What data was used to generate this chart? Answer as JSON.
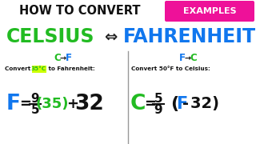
{
  "bg_color": "#ffffff",
  "title_text": "HOW TO CONVERT",
  "title_color": "#111111",
  "celsius_text": "CELSIUS",
  "celsius_color": "#22bb22",
  "fahrenheit_text": "FAHRENHEIT",
  "fahrenheit_color": "#1177ee",
  "examples_text": "EXAMPLES",
  "examples_bg": "#ee1199",
  "examples_color": "#ffffff",
  "arrow_symbol": "⇔",
  "arrow_color": "#222222",
  "ctof_c_color": "#22bb22",
  "ctof_f_color": "#1177ee",
  "ftoc_f_color": "#1177ee",
  "ftoc_c_color": "#22bb22",
  "highlight_35": "35°C",
  "highlight_color": "#22bb22",
  "highlight_bg": "#ccff00",
  "divider_color": "#999999",
  "formula_f_color": "#1177ee",
  "formula_c_color": "#22bb22",
  "formula_green": "#22bb22",
  "formula_blue": "#1177ee",
  "formula_black": "#111111"
}
